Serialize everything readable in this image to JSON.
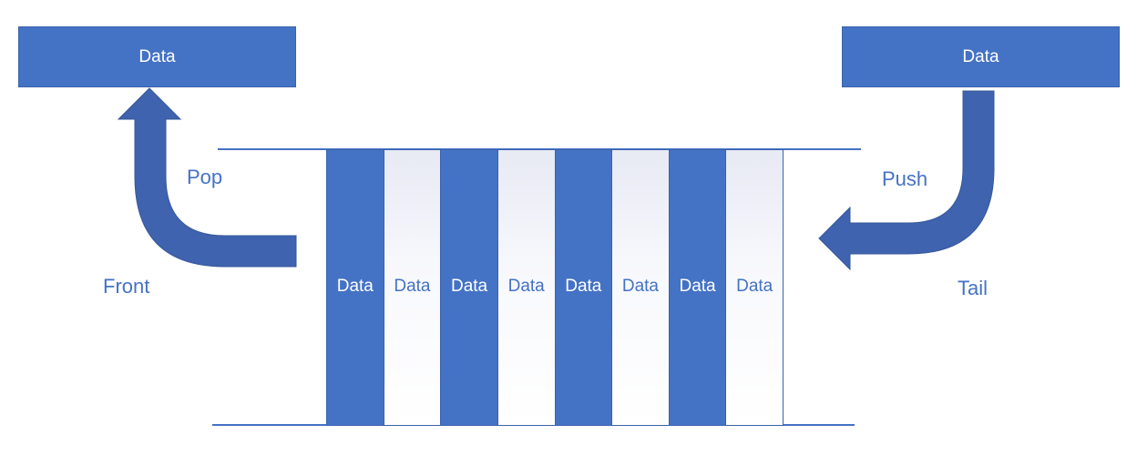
{
  "diagram": {
    "popped_box": {
      "text": "Data"
    },
    "pushed_box": {
      "text": "Data"
    },
    "queue_cells": [
      {
        "text": "Data",
        "style": "filled"
      },
      {
        "text": "Data",
        "style": "hollow"
      },
      {
        "text": "Data",
        "style": "filled"
      },
      {
        "text": "Data",
        "style": "hollow"
      },
      {
        "text": "Data",
        "style": "filled"
      },
      {
        "text": "Data",
        "style": "hollow"
      },
      {
        "text": "Data",
        "style": "filled"
      },
      {
        "text": "Data",
        "style": "hollow"
      }
    ],
    "labels": {
      "pop": "Pop",
      "push": "Push",
      "front": "Front",
      "tail": "Tail"
    },
    "colors": {
      "accent": "#4472C4",
      "arrow": "#3F63AE",
      "border": "#3A63AD"
    }
  }
}
